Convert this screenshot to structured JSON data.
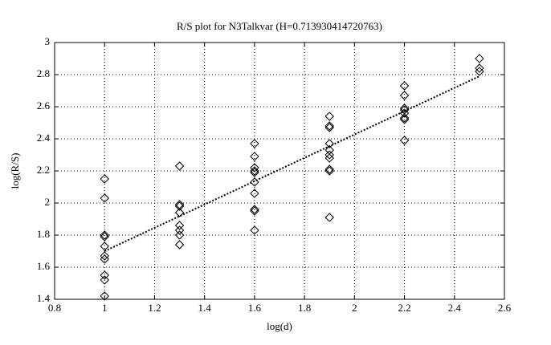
{
  "chart_data": {
    "type": "scatter",
    "title": "R/S plot for N3Talkvar (H=0.713930414720763)",
    "x_label": "log(d)",
    "y_label": "log(R/S)",
    "xlim": [
      0.8,
      2.6
    ],
    "ylim": [
      1.4,
      3
    ],
    "xticks": [
      0.8,
      1,
      1.2,
      1.4,
      1.6,
      1.8,
      2,
      2.2,
      2.4,
      2.6
    ],
    "yticks": [
      1.4,
      1.6,
      1.8,
      2,
      2.2,
      2.4,
      2.6,
      2.8,
      3
    ],
    "grid": true,
    "series": [
      {
        "type": "scatter",
        "marker": "diamond",
        "color": "#000000",
        "x": [
          1,
          1,
          1,
          1,
          1,
          1,
          1,
          1,
          1,
          1,
          1.3,
          1.3,
          1.3,
          1.3,
          1.3,
          1.3,
          1.3,
          1.3,
          1.6,
          1.6,
          1.6,
          1.6,
          1.6,
          1.6,
          1.6,
          1.6,
          1.6,
          1.6,
          1.9,
          1.9,
          1.9,
          1.9,
          1.9,
          1.9,
          1.9,
          1.9,
          1.9,
          1.9,
          2.2,
          2.2,
          2.2,
          2.2,
          2.2,
          2.2,
          2.2,
          2.2,
          2.5,
          2.5,
          2.5
        ],
        "values": [
          2.15,
          2.03,
          1.8,
          1.79,
          1.73,
          1.67,
          1.65,
          1.55,
          1.52,
          1.42,
          2.23,
          1.99,
          1.98,
          1.94,
          1.86,
          1.83,
          1.8,
          1.74,
          2.37,
          2.29,
          2.22,
          2.2,
          2.19,
          2.13,
          2.06,
          1.96,
          1.95,
          1.83,
          2.54,
          2.48,
          2.47,
          2.37,
          2.33,
          2.3,
          2.28,
          2.21,
          2.2,
          1.91,
          2.73,
          2.67,
          2.59,
          2.58,
          2.56,
          2.53,
          2.52,
          2.39,
          2.9,
          2.84,
          2.82
        ]
      },
      {
        "type": "line",
        "style": "dotted",
        "color": "#000000",
        "x": [
          1,
          2.5
        ],
        "values": [
          1.7,
          2.79
        ]
      }
    ]
  }
}
